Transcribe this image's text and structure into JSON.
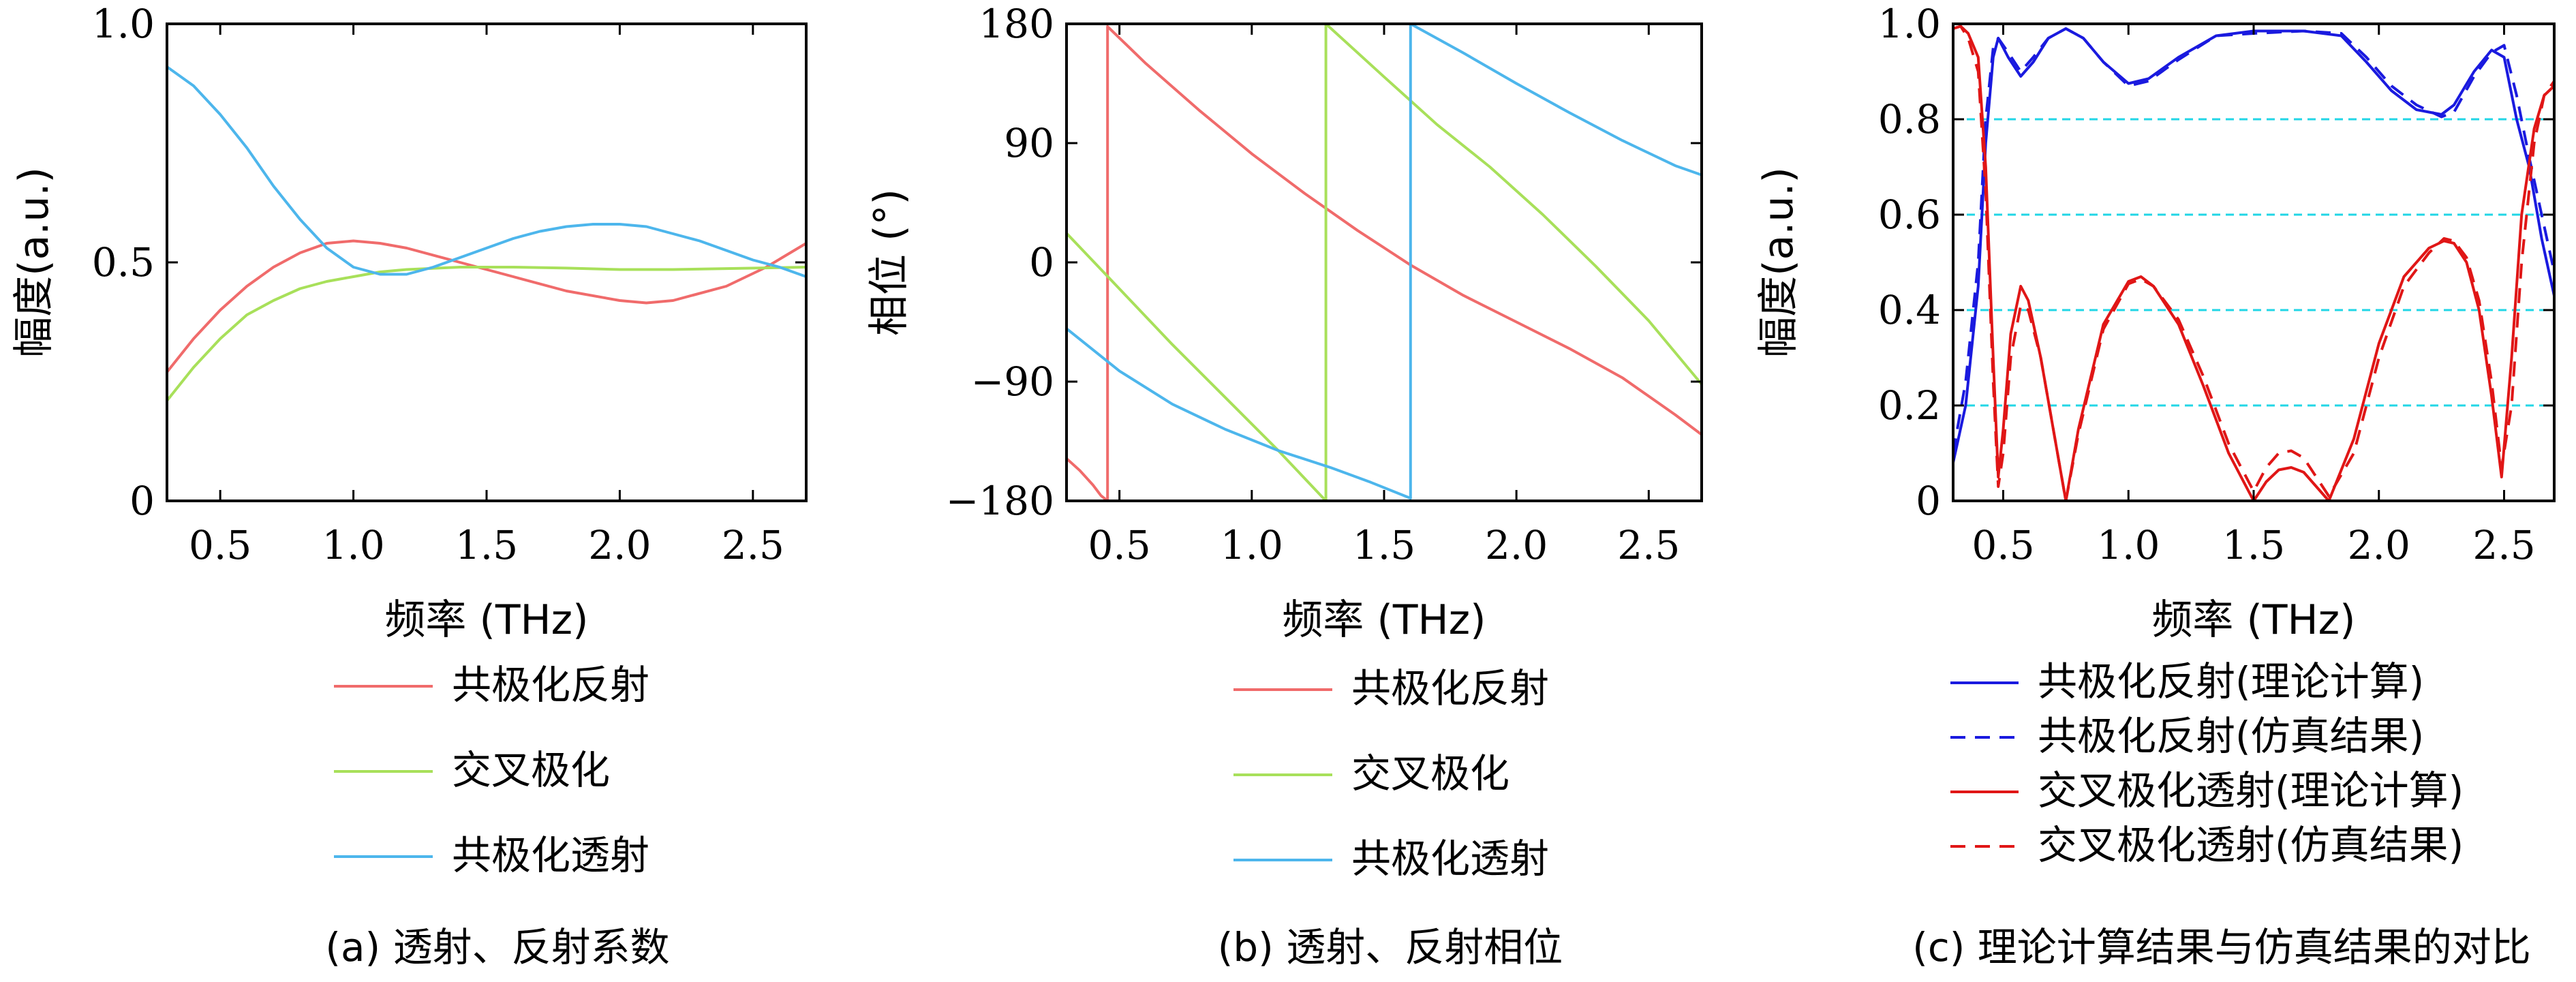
{
  "colors": {
    "co_refl_a": "#f06b6b",
    "cross_a": "#a8e05a",
    "co_trans_a": "#4db6ec",
    "blue": "#1a1adf",
    "red": "#e01616",
    "guide": "#22d6e6"
  },
  "chart_data": [
    {
      "type": "line",
      "caption": "(a) 透射、反射系数",
      "xlabel": "频率 (THz)",
      "ylabel": "幅度(a.u.)",
      "xlim": [
        0.3,
        2.7
      ],
      "ylim": [
        0,
        1.0
      ],
      "xticks": [
        0.5,
        1.0,
        1.5,
        2.0,
        2.5
      ],
      "xtick_labels": [
        "0.5",
        "1.0",
        "1.5",
        "2.0",
        "2.5"
      ],
      "yticks": [
        0,
        0.5,
        1.0
      ],
      "ytick_labels": [
        "0",
        "0.5",
        "1.0"
      ],
      "legend_position": "below",
      "series": [
        {
          "name": "共极化反射",
          "color": "#f06b6b",
          "x": [
            0.3,
            0.4,
            0.5,
            0.6,
            0.7,
            0.8,
            0.9,
            1.0,
            1.1,
            1.2,
            1.4,
            1.6,
            1.8,
            2.0,
            2.1,
            2.2,
            2.4,
            2.55,
            2.7
          ],
          "y": [
            0.27,
            0.34,
            0.4,
            0.45,
            0.49,
            0.52,
            0.54,
            0.545,
            0.54,
            0.53,
            0.5,
            0.47,
            0.44,
            0.42,
            0.415,
            0.42,
            0.45,
            0.49,
            0.54
          ]
        },
        {
          "name": "交叉极化",
          "color": "#a8e05a",
          "x": [
            0.3,
            0.4,
            0.5,
            0.6,
            0.7,
            0.8,
            0.9,
            1.0,
            1.1,
            1.2,
            1.4,
            1.6,
            1.8,
            2.0,
            2.2,
            2.4,
            2.7
          ],
          "y": [
            0.21,
            0.28,
            0.34,
            0.39,
            0.42,
            0.445,
            0.46,
            0.47,
            0.48,
            0.485,
            0.49,
            0.49,
            0.488,
            0.485,
            0.485,
            0.487,
            0.49
          ]
        },
        {
          "name": "共极化透射",
          "color": "#4db6ec",
          "x": [
            0.3,
            0.4,
            0.5,
            0.6,
            0.7,
            0.8,
            0.9,
            1.0,
            1.1,
            1.2,
            1.3,
            1.4,
            1.5,
            1.6,
            1.7,
            1.8,
            1.9,
            2.0,
            2.1,
            2.2,
            2.3,
            2.4,
            2.5,
            2.6,
            2.7
          ],
          "y": [
            0.91,
            0.87,
            0.81,
            0.74,
            0.66,
            0.59,
            0.53,
            0.49,
            0.475,
            0.475,
            0.49,
            0.51,
            0.53,
            0.55,
            0.565,
            0.575,
            0.58,
            0.58,
            0.575,
            0.56,
            0.545,
            0.525,
            0.505,
            0.49,
            0.47
          ]
        }
      ]
    },
    {
      "type": "line",
      "caption": "(b) 透射、反射相位",
      "xlabel": "频率 (THz)",
      "ylabel": "相位 (°)",
      "xlim": [
        0.3,
        2.7
      ],
      "ylim": [
        -180,
        180
      ],
      "xticks": [
        0.5,
        1.0,
        1.5,
        2.0,
        2.5
      ],
      "xtick_labels": [
        "0.5",
        "1.0",
        "1.5",
        "2.0",
        "2.5"
      ],
      "yticks": [
        -180,
        -90,
        0,
        90,
        180
      ],
      "ytick_labels": [
        "−180",
        "−90",
        "0",
        "90",
        "180"
      ],
      "legend_position": "below",
      "series": [
        {
          "name": "共极化反射",
          "color": "#f06b6b",
          "x": [
            0.3,
            0.35,
            0.4,
            0.43,
            0.455,
            0.455,
            0.6,
            0.8,
            1.0,
            1.2,
            1.4,
            1.6,
            1.8,
            2.0,
            2.2,
            2.4,
            2.6,
            2.7
          ],
          "y": [
            -148,
            -157,
            -168,
            -176,
            -180,
            178,
            150,
            115,
            82,
            52,
            24,
            -2,
            -25,
            -45,
            -65,
            -87,
            -115,
            -130
          ]
        },
        {
          "name": "交叉极化",
          "color": "#a8e05a",
          "x": [
            0.3,
            0.5,
            0.7,
            0.9,
            1.1,
            1.28,
            1.28,
            1.5,
            1.7,
            1.9,
            2.1,
            2.3,
            2.5,
            2.7
          ],
          "y": [
            22,
            -20,
            -62,
            -102,
            -142,
            -180,
            180,
            140,
            104,
            72,
            36,
            -3,
            -44,
            -92
          ]
        },
        {
          "name": "共极化透射",
          "color": "#4db6ec",
          "x": [
            0.3,
            0.5,
            0.7,
            0.9,
            1.1,
            1.3,
            1.45,
            1.6,
            1.6,
            1.8,
            2.0,
            2.2,
            2.4,
            2.6,
            2.7
          ],
          "y": [
            -50,
            -82,
            -107,
            -126,
            -142,
            -155,
            -166,
            -178,
            180,
            158,
            135,
            113,
            92,
            73,
            66
          ]
        }
      ]
    },
    {
      "type": "line",
      "caption": "(c) 理论计算结果与仿真结果的对比",
      "xlabel": "频率 (THz)",
      "ylabel": "幅度(a.u.)",
      "xlim": [
        0.3,
        2.7
      ],
      "ylim": [
        0,
        1.0
      ],
      "xticks": [
        0.5,
        1.0,
        1.5,
        2.0,
        2.5
      ],
      "xtick_labels": [
        "0.5",
        "1.0",
        "1.5",
        "2.0",
        "2.5"
      ],
      "yticks": [
        0,
        0.2,
        0.4,
        0.6,
        0.8,
        1.0
      ],
      "ytick_labels": [
        "0",
        "0.2",
        "0.4",
        "0.6",
        "0.8",
        "1.0"
      ],
      "guide_lines": [
        0.2,
        0.4,
        0.6,
        0.8
      ],
      "legend_position": "below",
      "series": [
        {
          "name": "共极化反射(理论计算)",
          "color": "#1a1adf",
          "dash": false,
          "x": [
            0.3,
            0.35,
            0.4,
            0.43,
            0.46,
            0.48,
            0.52,
            0.57,
            0.62,
            0.68,
            0.75,
            0.82,
            0.9,
            1.0,
            1.08,
            1.2,
            1.35,
            1.5,
            1.7,
            1.85,
            1.95,
            2.05,
            2.15,
            2.25,
            2.3,
            2.38,
            2.45,
            2.5,
            2.55,
            2.6,
            2.65,
            2.7
          ],
          "y": [
            0.08,
            0.2,
            0.45,
            0.75,
            0.93,
            0.97,
            0.93,
            0.89,
            0.92,
            0.97,
            0.99,
            0.97,
            0.92,
            0.875,
            0.885,
            0.93,
            0.975,
            0.985,
            0.985,
            0.975,
            0.92,
            0.86,
            0.82,
            0.81,
            0.83,
            0.9,
            0.945,
            0.93,
            0.8,
            0.7,
            0.55,
            0.43
          ]
        },
        {
          "name": "共极化反射(仿真结果)",
          "color": "#1a1adf",
          "dash": true,
          "x": [
            0.3,
            0.35,
            0.4,
            0.43,
            0.46,
            0.48,
            0.52,
            0.57,
            0.62,
            0.68,
            0.75,
            0.82,
            0.9,
            1.0,
            1.08,
            1.2,
            1.35,
            1.5,
            1.7,
            1.85,
            1.95,
            2.05,
            2.15,
            2.25,
            2.3,
            2.38,
            2.45,
            2.5,
            2.55,
            2.6,
            2.65,
            2.7
          ],
          "y": [
            0.1,
            0.25,
            0.5,
            0.8,
            0.95,
            0.97,
            0.94,
            0.9,
            0.93,
            0.97,
            0.99,
            0.97,
            0.92,
            0.87,
            0.88,
            0.925,
            0.975,
            0.98,
            0.985,
            0.98,
            0.93,
            0.87,
            0.83,
            0.805,
            0.815,
            0.89,
            0.94,
            0.955,
            0.85,
            0.72,
            0.6,
            0.48
          ]
        },
        {
          "name": "交叉极化透射(理论计算)",
          "color": "#e01616",
          "dash": false,
          "x": [
            0.3,
            0.33,
            0.36,
            0.4,
            0.43,
            0.46,
            0.48,
            0.5,
            0.53,
            0.57,
            0.6,
            0.65,
            0.7,
            0.75,
            0.8,
            0.9,
            1.0,
            1.05,
            1.1,
            1.2,
            1.3,
            1.4,
            1.5,
            1.55,
            1.6,
            1.65,
            1.7,
            1.75,
            1.8,
            1.9,
            2.0,
            2.1,
            2.2,
            2.26,
            2.3,
            2.35,
            2.4,
            2.45,
            2.49,
            2.53,
            2.57,
            2.62,
            2.66,
            2.7
          ],
          "y": [
            0.99,
            0.995,
            0.98,
            0.93,
            0.7,
            0.3,
            0.05,
            0.15,
            0.35,
            0.45,
            0.42,
            0.3,
            0.15,
            0.0,
            0.15,
            0.37,
            0.46,
            0.47,
            0.45,
            0.37,
            0.24,
            0.1,
            0.0,
            0.04,
            0.065,
            0.07,
            0.06,
            0.03,
            0.0,
            0.13,
            0.33,
            0.47,
            0.53,
            0.545,
            0.54,
            0.5,
            0.4,
            0.22,
            0.05,
            0.3,
            0.6,
            0.78,
            0.85,
            0.87
          ]
        },
        {
          "name": "交叉极化透射(仿真结果)",
          "color": "#e01616",
          "dash": true,
          "x": [
            0.3,
            0.33,
            0.36,
            0.4,
            0.43,
            0.46,
            0.48,
            0.5,
            0.53,
            0.57,
            0.6,
            0.65,
            0.7,
            0.75,
            0.8,
            0.9,
            1.0,
            1.05,
            1.1,
            1.2,
            1.3,
            1.4,
            1.5,
            1.55,
            1.6,
            1.65,
            1.7,
            1.75,
            1.8,
            1.9,
            2.0,
            2.1,
            2.2,
            2.26,
            2.3,
            2.35,
            2.4,
            2.45,
            2.49,
            2.53,
            2.57,
            2.62,
            2.66,
            2.7
          ],
          "y": [
            0.99,
            0.995,
            0.97,
            0.9,
            0.65,
            0.25,
            0.03,
            0.1,
            0.3,
            0.41,
            0.4,
            0.3,
            0.15,
            0.0,
            0.14,
            0.36,
            0.455,
            0.465,
            0.45,
            0.38,
            0.26,
            0.12,
            0.02,
            0.07,
            0.1,
            0.105,
            0.09,
            0.05,
            0.01,
            0.1,
            0.3,
            0.45,
            0.52,
            0.55,
            0.545,
            0.51,
            0.42,
            0.25,
            0.07,
            0.2,
            0.5,
            0.75,
            0.85,
            0.88
          ]
        }
      ]
    }
  ]
}
